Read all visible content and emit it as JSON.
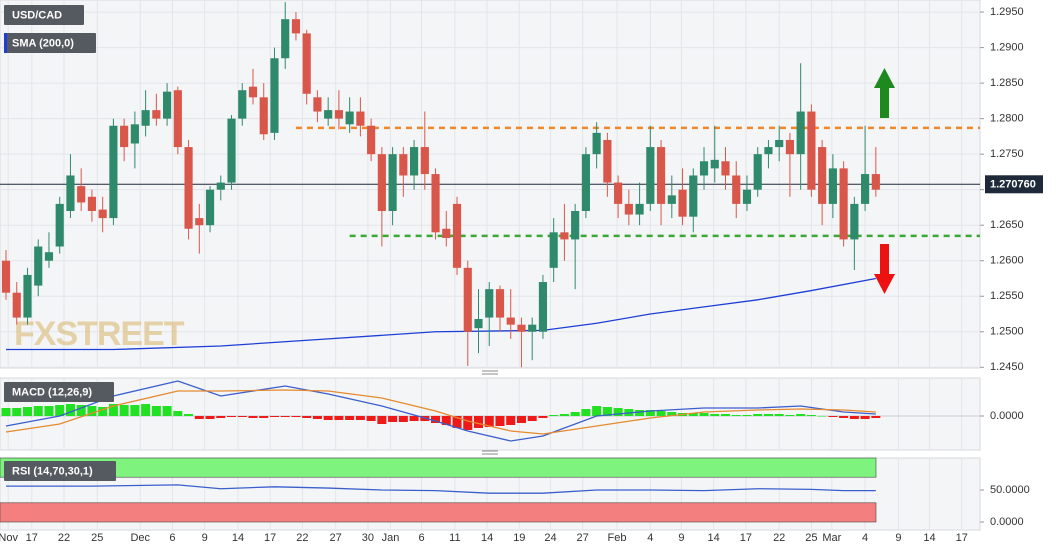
{
  "chart_data": [
    {
      "type": "candlestick",
      "title": "USD/CAD",
      "indicator_label": "SMA (200,0)",
      "watermark": "FXSTREET",
      "up_color": "#2f8a6c",
      "down_color": "#d9574a",
      "candles": [
        [
          1.26,
          1.2615,
          1.2545,
          1.2555
        ],
        [
          1.2555,
          1.257,
          1.251,
          1.252
        ],
        [
          1.252,
          1.259,
          1.251,
          1.258
        ],
        [
          1.2565,
          1.263,
          1.255,
          1.262
        ],
        [
          1.26,
          1.264,
          1.259,
          1.2612
        ],
        [
          1.262,
          1.269,
          1.261,
          1.268
        ],
        [
          1.267,
          1.275,
          1.266,
          1.272
        ],
        [
          1.2705,
          1.273,
          1.267,
          1.2682
        ],
        [
          1.269,
          1.27,
          1.2655,
          1.267
        ],
        [
          1.2672,
          1.269,
          1.264,
          1.266
        ],
        [
          1.266,
          1.28,
          1.265,
          1.279
        ],
        [
          1.279,
          1.28,
          1.274,
          1.276
        ],
        [
          1.2765,
          1.281,
          1.273,
          1.2792
        ],
        [
          1.279,
          1.284,
          1.2775,
          1.2812
        ],
        [
          1.2812,
          1.2835,
          1.279,
          1.28
        ],
        [
          1.28,
          1.285,
          1.279,
          1.2838
        ],
        [
          1.284,
          1.2845,
          1.275,
          1.276
        ],
        [
          1.276,
          1.277,
          1.263,
          1.2645
        ],
        [
          1.266,
          1.268,
          1.261,
          1.265
        ],
        [
          1.265,
          1.2705,
          1.264,
          1.27
        ],
        [
          1.27,
          1.272,
          1.2685,
          1.271
        ],
        [
          1.271,
          1.2805,
          1.27,
          1.28
        ],
        [
          1.28,
          1.285,
          1.279,
          1.284
        ],
        [
          1.2845,
          1.287,
          1.282,
          1.283
        ],
        [
          1.283,
          1.285,
          1.277,
          1.2778
        ],
        [
          1.278,
          1.29,
          1.277,
          1.2885
        ],
        [
          1.2885,
          1.2964,
          1.287,
          1.294
        ],
        [
          1.294,
          1.295,
          1.291,
          1.292
        ],
        [
          1.292,
          1.2925,
          1.282,
          1.2835
        ],
        [
          1.283,
          1.284,
          1.2795,
          1.281
        ],
        [
          1.28,
          1.283,
          1.279,
          1.2812
        ],
        [
          1.2812,
          1.284,
          1.2785,
          1.28
        ],
        [
          1.2792,
          1.283,
          1.278,
          1.281
        ],
        [
          1.281,
          1.283,
          1.2775,
          1.279
        ],
        [
          1.279,
          1.28,
          1.274,
          1.275
        ],
        [
          1.275,
          1.276,
          1.262,
          1.267
        ],
        [
          1.267,
          1.276,
          1.265,
          1.275
        ],
        [
          1.275,
          1.276,
          1.269,
          1.272
        ],
        [
          1.272,
          1.277,
          1.27,
          1.276
        ],
        [
          1.276,
          1.281,
          1.27,
          1.2722
        ],
        [
          1.2722,
          1.273,
          1.263,
          1.264
        ],
        [
          1.2645,
          1.267,
          1.262,
          1.2632
        ],
        [
          1.268,
          1.269,
          1.258,
          1.259
        ],
        [
          1.259,
          1.26,
          1.2452,
          1.25
        ],
        [
          1.2505,
          1.256,
          1.247,
          1.2518
        ],
        [
          1.252,
          1.257,
          1.248,
          1.256
        ],
        [
          1.256,
          1.2565,
          1.25,
          1.252
        ],
        [
          1.252,
          1.256,
          1.249,
          1.251
        ],
        [
          1.251,
          1.252,
          1.245,
          1.25
        ],
        [
          1.25,
          1.252,
          1.246,
          1.251
        ],
        [
          1.25,
          1.258,
          1.249,
          1.257
        ],
        [
          1.259,
          1.266,
          1.257,
          1.264
        ],
        [
          1.264,
          1.268,
          1.26,
          1.263
        ],
        [
          1.263,
          1.268,
          1.256,
          1.267
        ],
        [
          1.267,
          1.276,
          1.266,
          1.275
        ],
        [
          1.275,
          1.2795,
          1.273,
          1.278
        ],
        [
          1.277,
          1.278,
          1.269,
          1.271
        ],
        [
          1.271,
          1.272,
          1.266,
          1.268
        ],
        [
          1.268,
          1.27,
          1.265,
          1.2665
        ],
        [
          1.2665,
          1.271,
          1.265,
          1.268
        ],
        [
          1.268,
          1.279,
          1.267,
          1.276
        ],
        [
          1.276,
          1.277,
          1.265,
          1.268
        ],
        [
          1.268,
          1.272,
          1.266,
          1.2692
        ],
        [
          1.27,
          1.273,
          1.265,
          1.2662
        ],
        [
          1.2662,
          1.273,
          1.264,
          1.272
        ],
        [
          1.272,
          1.276,
          1.27,
          1.274
        ],
        [
          1.273,
          1.279,
          1.271,
          1.2742
        ],
        [
          1.274,
          1.276,
          1.27,
          1.272
        ],
        [
          1.272,
          1.274,
          1.266,
          1.268
        ],
        [
          1.268,
          1.272,
          1.267,
          1.27
        ],
        [
          1.27,
          1.276,
          1.269,
          1.275
        ],
        [
          1.275,
          1.277,
          1.273,
          1.276
        ],
        [
          1.276,
          1.279,
          1.274,
          1.277
        ],
        [
          1.277,
          1.278,
          1.269,
          1.275
        ],
        [
          1.275,
          1.2878,
          1.27,
          1.281
        ],
        [
          1.281,
          1.282,
          1.269,
          1.27
        ],
        [
          1.276,
          1.277,
          1.265,
          1.268
        ],
        [
          1.268,
          1.275,
          1.266,
          1.273
        ],
        [
          1.273,
          1.274,
          1.262,
          1.263
        ],
        [
          1.263,
          1.269,
          1.2587,
          1.268
        ],
        [
          1.268,
          1.279,
          1.267,
          1.2722
        ],
        [
          1.2722,
          1.276,
          1.269,
          1.27
        ]
      ],
      "sma": {
        "color": "#1d3fd6",
        "x": [
          0,
          10,
          20,
          30,
          40,
          50,
          55,
          60,
          65,
          70,
          75,
          81
        ],
        "values": [
          1.2475,
          1.2475,
          1.248,
          1.249,
          1.25,
          1.2502,
          1.2512,
          1.2525,
          1.2535,
          1.2545,
          1.2558,
          1.2575
        ]
      },
      "levels": [
        {
          "value": 1.2787,
          "color": "#f0882a",
          "from": 27
        },
        {
          "value": 1.2635,
          "color": "#3aa835",
          "from": 32
        }
      ],
      "last_price": {
        "value": 1.27076,
        "label": "1.270760"
      },
      "xlim": [
        -0.56,
        90.7
      ],
      "xticks": [
        {
          "value": 0.2,
          "label": "Nov"
        },
        {
          "value": 2.4,
          "label": "17"
        },
        {
          "value": 5.4,
          "label": "22"
        },
        {
          "value": 8.5,
          "label": "25"
        },
        {
          "value": 12.5,
          "label": "Dec"
        },
        {
          "value": 15.5,
          "label": "6"
        },
        {
          "value": 18.5,
          "label": "9"
        },
        {
          "value": 21.6,
          "label": "14"
        },
        {
          "value": 24.6,
          "label": "17"
        },
        {
          "value": 27.6,
          "label": "22"
        },
        {
          "value": 30.7,
          "label": "27"
        },
        {
          "value": 33.7,
          "label": "30"
        },
        {
          "value": 35.8,
          "label": "Jan"
        },
        {
          "value": 38.7,
          "label": "6"
        },
        {
          "value": 41.8,
          "label": "11"
        },
        {
          "value": 44.8,
          "label": "14"
        },
        {
          "value": 47.8,
          "label": "19"
        },
        {
          "value": 50.7,
          "label": "24"
        },
        {
          "value": 53.7,
          "label": "27"
        },
        {
          "value": 56.9,
          "label": "Feb"
        },
        {
          "value": 60.0,
          "label": "4"
        },
        {
          "value": 62.9,
          "label": "9"
        },
        {
          "value": 65.9,
          "label": "14"
        },
        {
          "value": 68.9,
          "label": "17"
        },
        {
          "value": 72.0,
          "label": "22"
        },
        {
          "value": 75.0,
          "label": "25"
        },
        {
          "value": 76.9,
          "label": "Mar"
        },
        {
          "value": 80.0,
          "label": "4"
        },
        {
          "value": 83.1,
          "label": "9"
        },
        {
          "value": 86.0,
          "label": "14"
        },
        {
          "value": 89.0,
          "label": "17"
        }
      ],
      "ylim": [
        1.2449,
        1.2967
      ],
      "yticks": [
        {
          "value": 1.245,
          "label": "1.2450"
        },
        {
          "value": 1.25,
          "label": "1.2500"
        },
        {
          "value": 1.255,
          "label": "1.2550"
        },
        {
          "value": 1.26,
          "label": "1.2600"
        },
        {
          "value": 1.265,
          "label": "1.2650"
        },
        {
          "value": 1.27,
          "label": "1.2700"
        },
        {
          "value": 1.275,
          "label": "1.2750"
        },
        {
          "value": 1.28,
          "label": "1.2800"
        },
        {
          "value": 1.285,
          "label": "1.2850"
        },
        {
          "value": 1.29,
          "label": "1.2900"
        },
        {
          "value": 1.295,
          "label": "1.2950"
        }
      ],
      "grid": true
    },
    {
      "type": "macd",
      "label": "MACD (12,26,9)",
      "up_color": "#22e022",
      "down_color": "#ee1a1a",
      "histogram": [
        0.0008,
        0.0008,
        0.0009,
        0.001,
        0.001,
        0.0011,
        0.0012,
        0.0011,
        0.001,
        0.0009,
        0.0012,
        0.0011,
        0.0011,
        0.0012,
        0.001,
        0.001,
        0.0005,
        0.0002,
        -0.0003,
        -0.0003,
        -0.0002,
        -0.0001,
        -0.0001,
        -0.0002,
        -0.0002,
        -0.0001,
        -0.0001,
        -0.0001,
        -0.0002,
        -0.0003,
        -0.0004,
        -0.0004,
        -0.0004,
        -0.0004,
        -0.0005,
        -0.0008,
        -0.0006,
        -0.0006,
        -0.0005,
        -0.0005,
        -0.0007,
        -0.0009,
        -0.0012,
        -0.0014,
        -0.0012,
        -0.0011,
        -0.001,
        -0.0009,
        -0.0007,
        -0.0005,
        -0.0002,
        0.0001,
        0.0002,
        0.0004,
        0.0007,
        0.001,
        0.0009,
        0.0008,
        0.0007,
        0.0006,
        0.0006,
        0.0005,
        0.0004,
        0.0003,
        0.0003,
        0.0003,
        0.0002,
        0.0002,
        0.0001,
        0.0001,
        0.0002,
        0.0002,
        0.0002,
        0.0001,
        0.0002,
        0.0001,
        0.0,
        -0.0001,
        -0.0002,
        -0.0003,
        -0.0003,
        -0.0002
      ],
      "series": [
        {
          "name": "MACD",
          "color": "#3a5fcd",
          "x": [
            0,
            5,
            10,
            16,
            20,
            26,
            30,
            35,
            40,
            43,
            47,
            50,
            55,
            60,
            65,
            70,
            74,
            78,
            81
          ],
          "values": [
            -0.001,
            0.0,
            0.002,
            0.0035,
            0.002,
            0.003,
            0.0022,
            0.001,
            -0.0005,
            -0.0015,
            -0.0025,
            -0.002,
            0.0,
            0.0005,
            0.0008,
            0.0008,
            0.001,
            0.0004,
            0.0002
          ]
        },
        {
          "name": "Signal",
          "color": "#e58a2e",
          "x": [
            0,
            5,
            10,
            16,
            20,
            26,
            30,
            35,
            40,
            43,
            47,
            50,
            55,
            60,
            65,
            70,
            74,
            78,
            81
          ],
          "values": [
            -0.0016,
            -0.0008,
            0.001,
            0.0025,
            0.0025,
            0.0026,
            0.0025,
            0.0018,
            0.0005,
            -0.0005,
            -0.0015,
            -0.0018,
            -0.001,
            -0.0002,
            0.0004,
            0.0006,
            0.0007,
            0.0006,
            0.0004
          ]
        }
      ],
      "ylim": [
        -0.0034,
        0.0038
      ],
      "yticks": [
        {
          "value": 0,
          "label": "0.0000"
        }
      ]
    },
    {
      "type": "rsi",
      "label": "RSI (14,70,30,1)",
      "bands": [
        {
          "range": [
            70,
            100
          ],
          "color": "#7ef47e"
        },
        {
          "range": [
            0,
            30
          ],
          "color": "#f47f7f"
        }
      ],
      "series": [
        {
          "name": "RSI",
          "color": "#3a5fcd",
          "x": [
            0,
            8,
            16,
            20,
            25,
            30,
            35,
            40,
            45,
            50,
            55,
            60,
            65,
            70,
            75,
            78,
            81
          ],
          "values": [
            56,
            56,
            58,
            52,
            55,
            53,
            50,
            49,
            45,
            45,
            50,
            50,
            49,
            52,
            51,
            49,
            49
          ]
        }
      ],
      "ylim": [
        -12.5,
        100
      ],
      "yticks": [
        {
          "value": 50,
          "label": "50.0000"
        },
        {
          "value": 0,
          "label": "0.0000"
        }
      ]
    }
  ]
}
